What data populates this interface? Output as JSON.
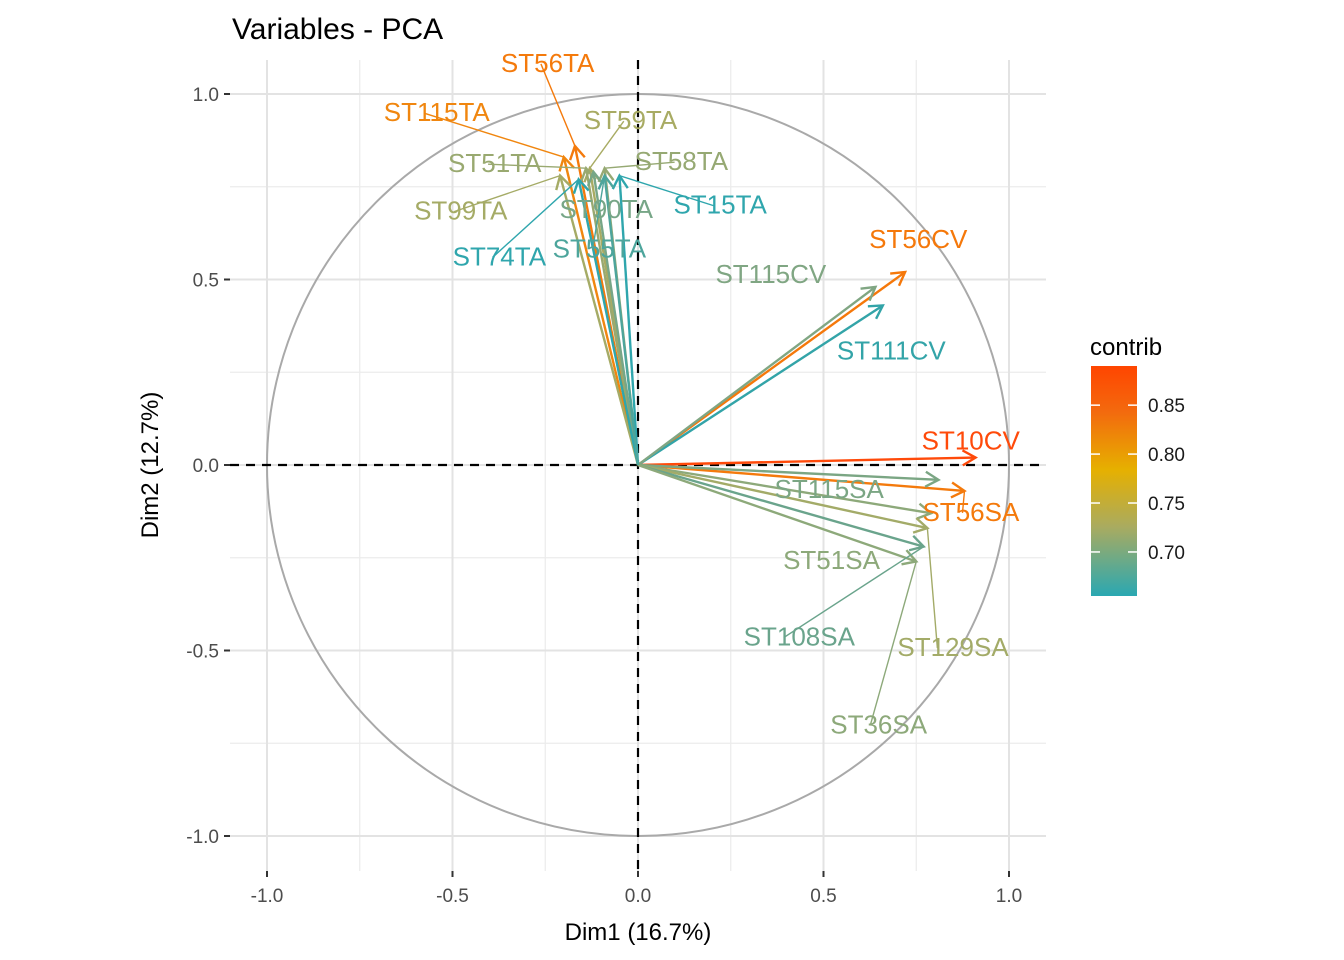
{
  "chart_data": {
    "type": "scatter",
    "title": "Variables - PCA",
    "xlabel": "Dim1 (16.7%)",
    "ylabel": "Dim2 (12.7%)",
    "xlim": [
      -1.0,
      1.0
    ],
    "ylim": [
      -1.0,
      1.0
    ],
    "x_ticks": [
      "-1.0",
      "-0.5",
      "0.0",
      "0.5",
      "1.0"
    ],
    "y_ticks": [
      "1.0",
      "0.5",
      "0.0",
      "-0.5",
      "-1.0"
    ],
    "grid": true,
    "correlation_circle": true,
    "legend": {
      "title": "contrib",
      "position": "right",
      "range": [
        0.655,
        0.89
      ],
      "ticks": [
        "0.85",
        "0.80",
        "0.75",
        "0.70"
      ],
      "colors": [
        "#2aa8b2",
        "#a9ab60",
        "#e6b000",
        "#f36a0e",
        "#ff4500"
      ]
    },
    "variables": [
      {
        "name": "ST10CV",
        "x": 0.91,
        "y": 0.02,
        "contrib": 0.89,
        "color": "#ff4a0a"
      },
      {
        "name": "ST56CV",
        "x": 0.72,
        "y": 0.52,
        "contrib": 0.85,
        "color": "#f5780a"
      },
      {
        "name": "ST111CV",
        "x": 0.66,
        "y": 0.43,
        "contrib": 0.66,
        "color": "#33a4a8"
      },
      {
        "name": "ST115CV",
        "x": 0.64,
        "y": 0.48,
        "contrib": 0.69,
        "color": "#80a683"
      },
      {
        "name": "ST56SA",
        "x": 0.88,
        "y": -0.07,
        "contrib": 0.84,
        "color": "#f47a0c"
      },
      {
        "name": "ST115SA",
        "x": 0.81,
        "y": -0.04,
        "contrib": 0.69,
        "color": "#7ba684"
      },
      {
        "name": "ST51SA",
        "x": 0.79,
        "y": -0.13,
        "contrib": 0.7,
        "color": "#8da97a"
      },
      {
        "name": "ST129SA",
        "x": 0.78,
        "y": -0.17,
        "contrib": 0.72,
        "color": "#a3ab68"
      },
      {
        "name": "ST108SA",
        "x": 0.77,
        "y": -0.22,
        "contrib": 0.68,
        "color": "#6aa48c"
      },
      {
        "name": "ST36SA",
        "x": 0.75,
        "y": -0.26,
        "contrib": 0.7,
        "color": "#8da97a"
      },
      {
        "name": "ST56TA",
        "x": -0.17,
        "y": 0.86,
        "contrib": 0.84,
        "color": "#f47a0c"
      },
      {
        "name": "ST115TA",
        "x": -0.2,
        "y": 0.83,
        "contrib": 0.83,
        "color": "#f0860f"
      },
      {
        "name": "ST59TA",
        "x": -0.13,
        "y": 0.8,
        "contrib": 0.72,
        "color": "#a8ab63"
      },
      {
        "name": "ST51TA",
        "x": -0.14,
        "y": 0.8,
        "contrib": 0.71,
        "color": "#99a970"
      },
      {
        "name": "ST58TA",
        "x": -0.09,
        "y": 0.8,
        "contrib": 0.71,
        "color": "#96a973"
      },
      {
        "name": "ST99TA",
        "x": -0.21,
        "y": 0.78,
        "contrib": 0.72,
        "color": "#a5ab66"
      },
      {
        "name": "ST90TA",
        "x": -0.12,
        "y": 0.79,
        "contrib": 0.69,
        "color": "#77a687"
      },
      {
        "name": "ST15TA",
        "x": -0.05,
        "y": 0.78,
        "contrib": 0.66,
        "color": "#2fa6ad"
      },
      {
        "name": "ST74TA",
        "x": -0.16,
        "y": 0.77,
        "contrib": 0.66,
        "color": "#2fa6ad"
      },
      {
        "name": "ST55TA",
        "x": -0.09,
        "y": 0.78,
        "contrib": 0.67,
        "color": "#4da59c"
      }
    ]
  }
}
